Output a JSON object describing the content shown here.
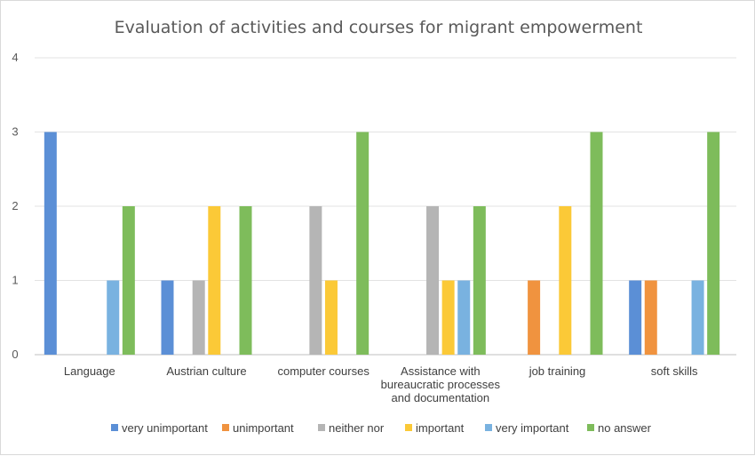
{
  "chart_data": {
    "type": "bar",
    "title": "Evaluation of activities and courses for migrant empowerment",
    "categories": [
      [
        "Language"
      ],
      [
        "Austrian culture"
      ],
      [
        "computer courses"
      ],
      [
        "Assistance with",
        "bureaucratic processes",
        "and documentation"
      ],
      [
        "job training"
      ],
      [
        "soft skills"
      ]
    ],
    "series": [
      {
        "name": "very unimportant",
        "color": "#5b8fd6",
        "values": [
          3,
          1,
          0,
          0,
          0,
          1
        ]
      },
      {
        "name": "unimportant",
        "color": "#f0933f",
        "values": [
          0,
          0,
          0,
          0,
          1,
          1
        ]
      },
      {
        "name": "neither nor",
        "color": "#b5b5b5",
        "values": [
          0,
          1,
          2,
          2,
          0,
          0
        ]
      },
      {
        "name": "important",
        "color": "#fbc937",
        "values": [
          0,
          2,
          1,
          1,
          2,
          0
        ]
      },
      {
        "name": "very important",
        "color": "#79b2e0",
        "values": [
          1,
          0,
          0,
          1,
          0,
          1
        ]
      },
      {
        "name": "no answer",
        "color": "#7ebc5b",
        "values": [
          2,
          2,
          3,
          2,
          3,
          3
        ]
      }
    ],
    "yticks": [
      "0",
      "1",
      "2",
      "3",
      "4"
    ],
    "ylim": [
      0,
      4
    ],
    "grid": true,
    "legend_position": "bottom"
  }
}
